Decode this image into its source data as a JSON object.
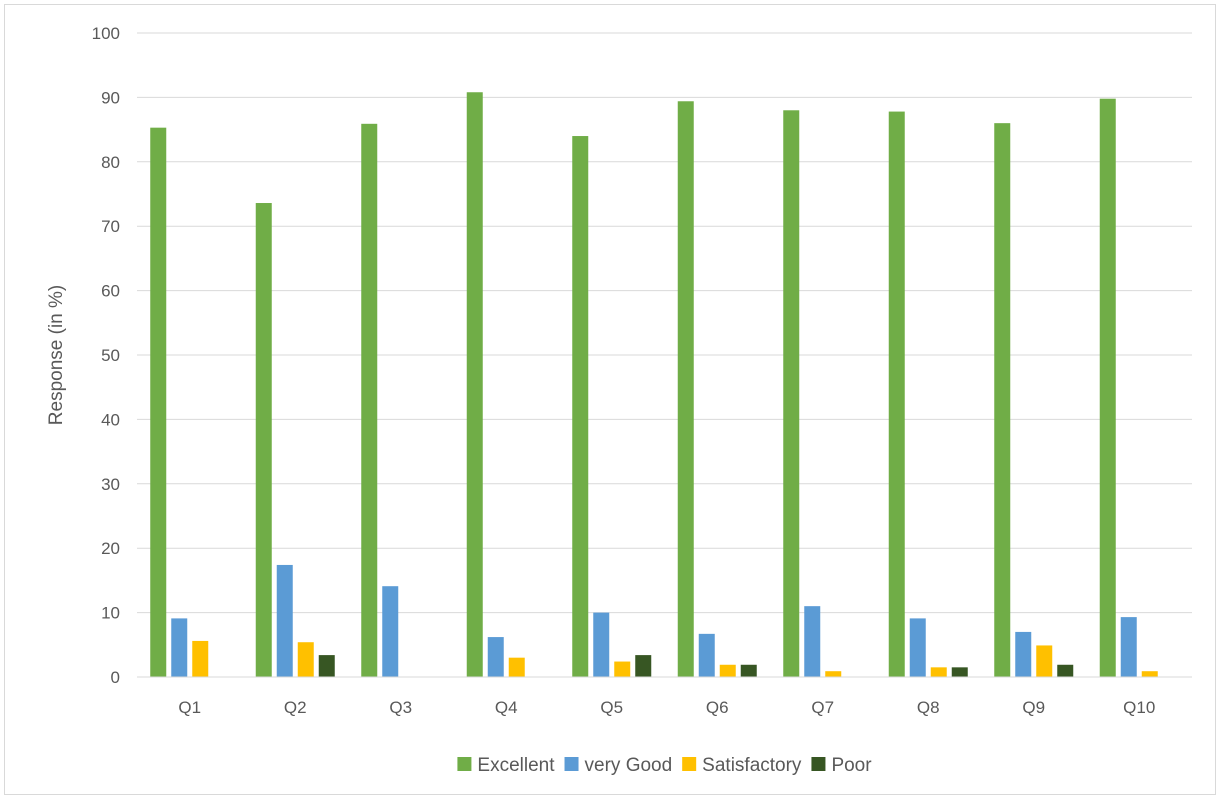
{
  "chart_data": {
    "type": "bar",
    "title": "",
    "xlabel": "",
    "ylabel": "Response (in %)",
    "ylim": [
      0,
      100
    ],
    "yticks": [
      0,
      10,
      20,
      30,
      40,
      50,
      60,
      70,
      80,
      90,
      100
    ],
    "grid": true,
    "legend_position": "bottom",
    "categories": [
      "Q1",
      "Q2",
      "Q3",
      "Q4",
      "Q5",
      "Q6",
      "Q7",
      "Q8",
      "Q9",
      "Q10"
    ],
    "series": [
      {
        "name": "Excellent",
        "color": "#70ad47",
        "values": [
          85.3,
          73.6,
          85.9,
          90.8,
          84.0,
          89.4,
          88.0,
          87.8,
          86.0,
          89.8
        ]
      },
      {
        "name": "very Good",
        "color": "#5b9bd5",
        "values": [
          9.1,
          17.4,
          14.1,
          6.2,
          10.0,
          6.7,
          11.0,
          9.1,
          7.0,
          9.3
        ]
      },
      {
        "name": "Satisfactory",
        "color": "#ffc000",
        "values": [
          5.6,
          5.4,
          0,
          3.0,
          2.4,
          1.9,
          0.9,
          1.5,
          4.9,
          0.9
        ]
      },
      {
        "name": "Poor",
        "color": "#375623",
        "values": [
          0,
          3.4,
          0,
          0,
          3.4,
          1.9,
          0,
          1.5,
          1.9,
          0
        ]
      }
    ]
  }
}
